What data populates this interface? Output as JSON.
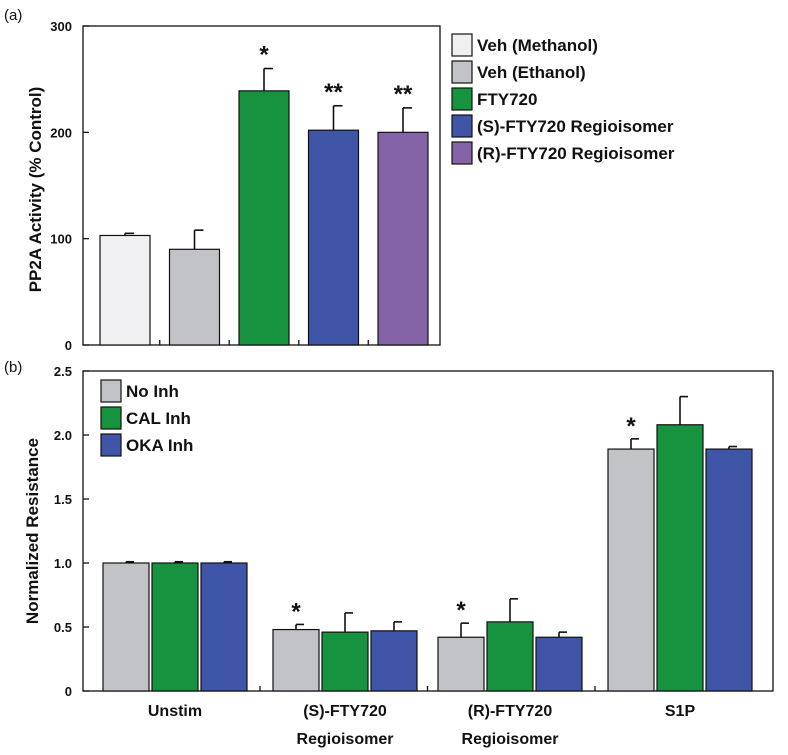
{
  "chart_data": [
    {
      "panel": "(a)",
      "type": "bar",
      "ylabel": "PP2A Activity (% Control)",
      "ylim": [
        0,
        300
      ],
      "yticks": [
        0,
        100,
        200,
        300
      ],
      "tick_labels": [
        "0",
        "100",
        "200",
        "300"
      ],
      "legend_position": "top-right",
      "bars": [
        {
          "name": "Veh (Methanol)",
          "value": 103,
          "error": 2,
          "color": "#f0f0f2",
          "sig": ""
        },
        {
          "name": "Veh (Ethanol)",
          "value": 90,
          "error": 18,
          "color": "#c2c3c7",
          "sig": ""
        },
        {
          "name": "FTY720",
          "value": 239,
          "error": 21,
          "color": "#17923f",
          "sig": "*"
        },
        {
          "name": "(S)-FTY720 Regioisomer",
          "value": 202,
          "error": 23,
          "color": "#3f55a8",
          "sig": "**"
        },
        {
          "name": "(R)-FTY720 Regioisomer",
          "value": 200,
          "error": 23,
          "color": "#8463a7",
          "sig": "**"
        }
      ]
    },
    {
      "panel": "(b)",
      "type": "bar",
      "ylabel": "Normalized Resistance",
      "ylim": [
        0,
        2.5
      ],
      "yticks": [
        0,
        0.5,
        1.0,
        1.5,
        2.0,
        2.5
      ],
      "tick_labels": [
        "0",
        "0.5",
        "1.0",
        "1.5",
        "2.0",
        "2.5"
      ],
      "legend_position": "top-left",
      "categories": [
        {
          "line1": "Unstim",
          "line2": ""
        },
        {
          "line1": "(S)-FTY720",
          "line2": "Regioisomer"
        },
        {
          "line1": "(R)-FTY720",
          "line2": "Regioisomer"
        },
        {
          "line1": "S1P",
          "line2": ""
        }
      ],
      "series": [
        {
          "name": "No Inh",
          "color": "#c2c3c7",
          "values": [
            1.0,
            0.48,
            0.42,
            1.89
          ],
          "errors": [
            0.01,
            0.04,
            0.11,
            0.08
          ],
          "sig": [
            "",
            "*",
            "*",
            "*"
          ]
        },
        {
          "name": "CAL Inh",
          "color": "#17923f",
          "values": [
            1.0,
            0.46,
            0.54,
            2.08
          ],
          "errors": [
            0.01,
            0.15,
            0.18,
            0.22
          ],
          "sig": [
            "",
            "",
            "",
            ""
          ]
        },
        {
          "name": "OKA Inh",
          "color": "#3f55a8",
          "values": [
            1.0,
            0.47,
            0.42,
            1.89
          ],
          "errors": [
            0.01,
            0.07,
            0.04,
            0.02
          ],
          "sig": [
            "",
            "",
            "",
            ""
          ]
        }
      ]
    }
  ]
}
